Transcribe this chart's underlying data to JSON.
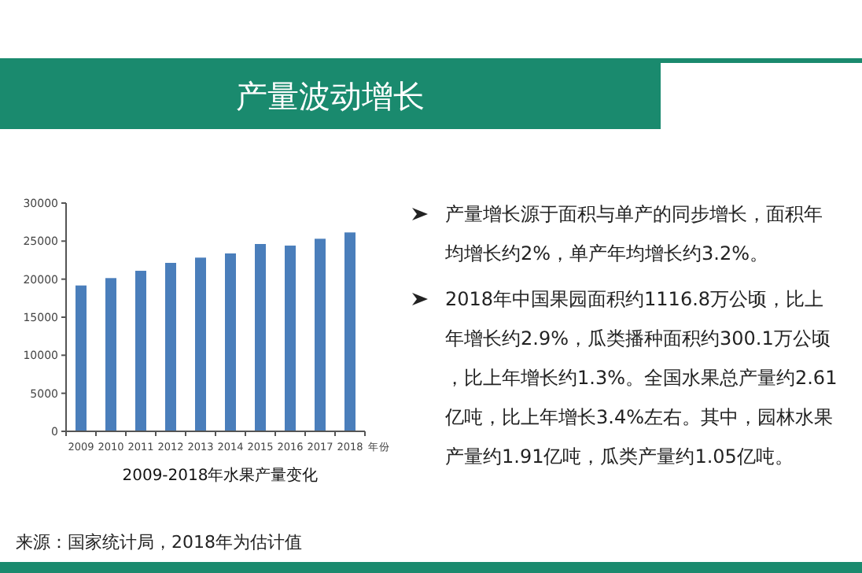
{
  "chart_data": {
    "type": "bar",
    "title": "产量波动增长",
    "subtitle": "2009-2018年水果产量变化",
    "xlabel": "年份",
    "categories": [
      "2009",
      "2010",
      "2011",
      "2012",
      "2013",
      "2014",
      "2015",
      "2016",
      "2017",
      "2018"
    ],
    "values": [
      19170,
      20140,
      21100,
      22140,
      22830,
      23380,
      24620,
      24410,
      25310,
      26140
    ],
    "color": "#4a7ebb",
    "ylim": [
      0,
      30000
    ],
    "yticks": [
      0,
      5000,
      10000,
      15000,
      20000,
      25000,
      30000
    ],
    "grid": false,
    "annotations": [
      "产量增长源于面积与单产的同步增长，面积年均增长约2%，单产年均增长约3.2%。",
      "2018年中国果园面积约1116.8万公顷，比上年增长约2.9%，瓜类播种面积约300.1万公顷，比上年增长约1.3%。全国水果总产量约2.61亿吨，比上年增长3.4%左右。其中，园林水果产量约1.91亿吨，瓜类产量约1.05亿吨。",
      "来源：国家统计局，2018年为估计值"
    ]
  }
}
